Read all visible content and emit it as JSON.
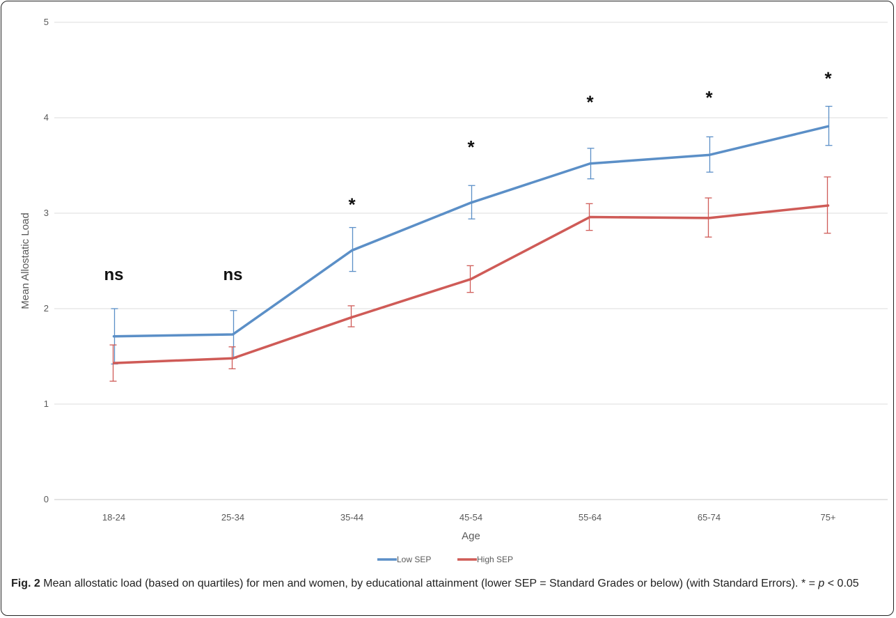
{
  "chart_data": {
    "type": "line",
    "xlabel": "Age",
    "ylabel": "Mean Allostatic Load",
    "ylim": [
      0,
      5
    ],
    "yticks": [
      "0",
      "1",
      "2",
      "3",
      "4",
      "5"
    ],
    "categories": [
      "18-24",
      "25-34",
      "35-44",
      "45-54",
      "55-64",
      "65-74",
      "75+"
    ],
    "grid": "horizontal",
    "legend_position": "bottom",
    "series": [
      {
        "name": "Low SEP",
        "color": "#5b8fc7",
        "values": [
          1.71,
          1.73,
          2.61,
          3.11,
          3.52,
          3.61,
          3.91
        ],
        "err_upper": [
          2.0,
          1.98,
          2.85,
          3.29,
          3.68,
          3.8,
          4.12
        ],
        "err_lower": [
          1.42,
          1.48,
          2.39,
          2.94,
          3.36,
          3.43,
          3.71
        ]
      },
      {
        "name": "High SEP",
        "color": "#cf5b57",
        "values": [
          1.43,
          1.48,
          1.91,
          2.31,
          2.96,
          2.95,
          3.08
        ],
        "err_upper": [
          1.62,
          1.6,
          2.03,
          2.45,
          3.1,
          3.16,
          3.38
        ],
        "err_lower": [
          1.24,
          1.37,
          1.81,
          2.17,
          2.82,
          2.75,
          2.79
        ]
      }
    ],
    "annotations": [
      {
        "category": "18-24",
        "text": "ns",
        "y": 2.3
      },
      {
        "category": "25-34",
        "text": "ns",
        "y": 2.3
      },
      {
        "category": "35-44",
        "text": "*",
        "y": 3.1
      },
      {
        "category": "45-54",
        "text": "*",
        "y": 3.7
      },
      {
        "category": "55-64",
        "text": "*",
        "y": 4.17
      },
      {
        "category": "65-74",
        "text": "*",
        "y": 4.22
      },
      {
        "category": "75+",
        "text": "*",
        "y": 4.42
      }
    ]
  },
  "caption": {
    "label": "Fig. 2",
    "text_before_p": "Mean allostatic load (based on quartiles) for men and women, by educational attainment (lower SEP = Standard Grades or below) (with Standard Errors). * = ",
    "p_symbol": "p",
    "text_after_p": " < 0.05"
  }
}
